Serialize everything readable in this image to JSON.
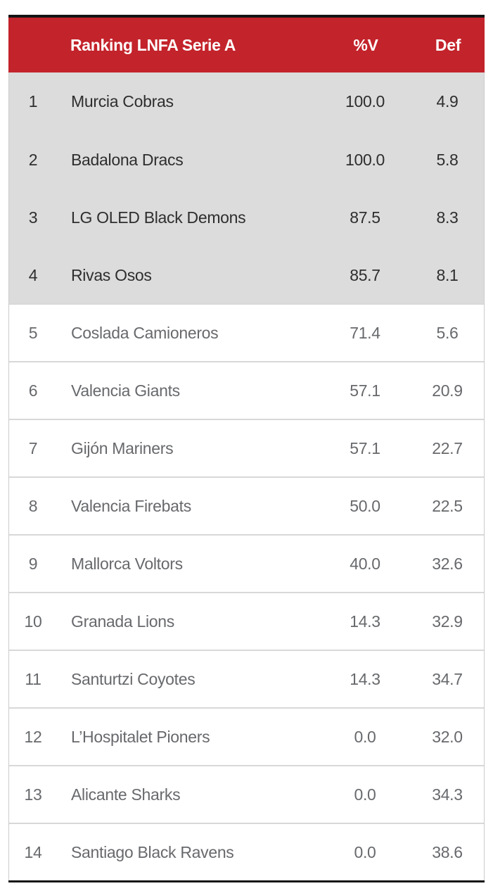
{
  "chart_data": {
    "type": "table",
    "title": "Ranking LNFA Serie A",
    "columns": [
      {
        "key": "rank",
        "label": ""
      },
      {
        "key": "team",
        "label": "Ranking LNFA Serie A"
      },
      {
        "key": "win_pct",
        "label": "%V"
      },
      {
        "key": "def_avg",
        "label": "Def"
      }
    ],
    "rows": [
      {
        "rank": "1",
        "team": "Murcia Cobras",
        "win_pct": "100.0",
        "def_avg": "4.9",
        "highlighted": true
      },
      {
        "rank": "2",
        "team": "Badalona Dracs",
        "win_pct": "100.0",
        "def_avg": "5.8",
        "highlighted": true
      },
      {
        "rank": "3",
        "team": "LG OLED Black Demons",
        "win_pct": "87.5",
        "def_avg": "8.3",
        "highlighted": true
      },
      {
        "rank": "4",
        "team": "Rivas Osos",
        "win_pct": "85.7",
        "def_avg": "8.1",
        "highlighted": true
      },
      {
        "rank": "5",
        "team": "Coslada Camioneros",
        "win_pct": "71.4",
        "def_avg": "5.6",
        "highlighted": false
      },
      {
        "rank": "6",
        "team": "Valencia Giants",
        "win_pct": "57.1",
        "def_avg": "20.9",
        "highlighted": false
      },
      {
        "rank": "7",
        "team": "Gijón Mariners",
        "win_pct": "57.1",
        "def_avg": "22.7",
        "highlighted": false
      },
      {
        "rank": "8",
        "team": "Valencia Firebats",
        "win_pct": "50.0",
        "def_avg": "22.5",
        "highlighted": false
      },
      {
        "rank": "9",
        "team": "Mallorca Voltors",
        "win_pct": "40.0",
        "def_avg": "32.6",
        "highlighted": false
      },
      {
        "rank": "10",
        "team": "Granada Lions",
        "win_pct": "14.3",
        "def_avg": "32.9",
        "highlighted": false
      },
      {
        "rank": "11",
        "team": "Santurtzi Coyotes",
        "win_pct": "14.3",
        "def_avg": "34.7",
        "highlighted": false
      },
      {
        "rank": "12",
        "team": "L’Hospitalet Pioners",
        "win_pct": "0.0",
        "def_avg": "32.0",
        "highlighted": false
      },
      {
        "rank": "13",
        "team": "Alicante Sharks",
        "win_pct": "0.0",
        "def_avg": "34.3",
        "highlighted": false
      },
      {
        "rank": "14",
        "team": "Santiago Black Ravens",
        "win_pct": "0.0",
        "def_avg": "38.6",
        "highlighted": false
      }
    ],
    "layout": {
      "legend_position": "none",
      "grid": "horizontal row separators on white rows only",
      "highlighted_zone": "rows 1-4 gray background"
    }
  },
  "colors": {
    "header_bg": "#c3232b",
    "header_text": "#ffffff",
    "highlight_bg": "#dcdcdc",
    "highlight_text": "#2e2e2e",
    "row_bg": "#ffffff",
    "row_text": "#67696c",
    "separator": "#d8d8d8",
    "side_border": "#cccccc",
    "frame_border": "#141414",
    "page_bg": "#ffffff"
  }
}
